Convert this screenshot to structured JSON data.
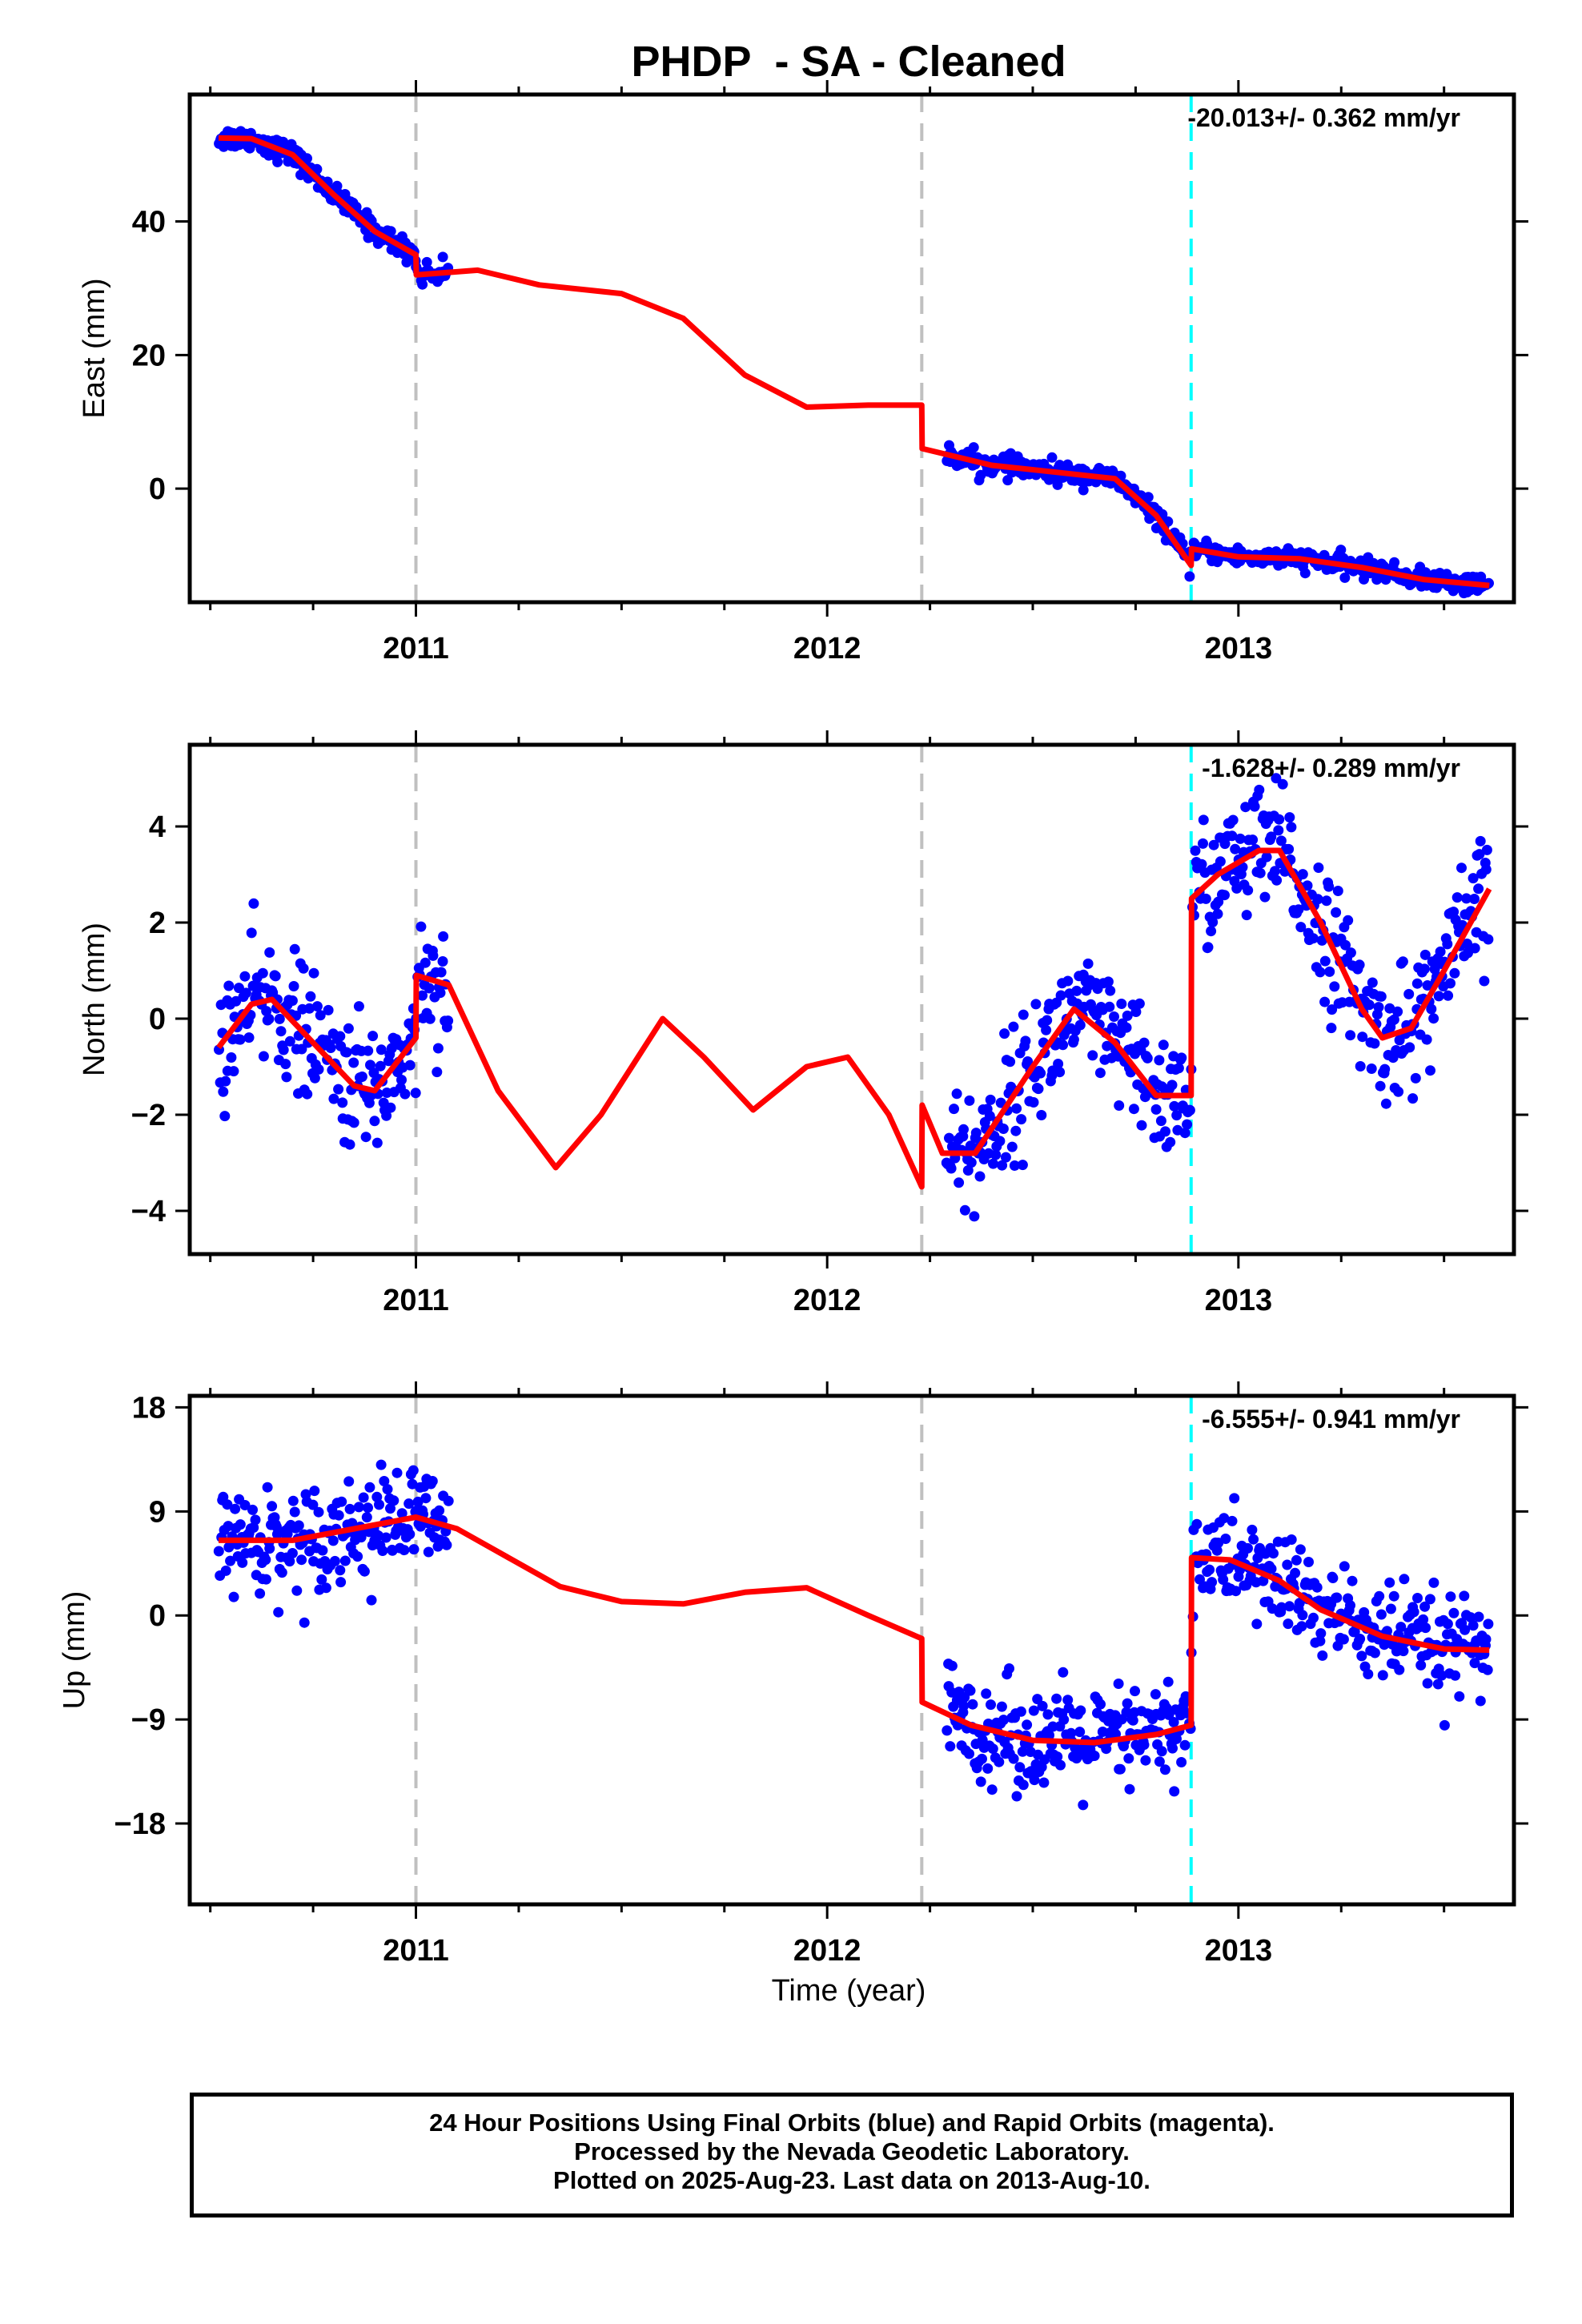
{
  "chart_title": "PHDP  - SA - Cleaned",
  "xlabel": "Time (year)",
  "footer": {
    "line1": "24 Hour Positions Using Final Orbits (blue) and Rapid Orbits (magenta).",
    "line2": "Processed by the Nevada Geodetic Laboratory.",
    "line3": "Plotted on 2025-Aug-23. Last data on 2013-Aug-10."
  },
  "colors": {
    "final_orbit_points": "#0000ff",
    "model_fit": "#ff0000",
    "equipment_change_line": "#c0c0c0",
    "earthquake_line": "#00ffff"
  },
  "chart_data": [
    {
      "type": "scatter",
      "component": "East",
      "ylabel": "East (mm)",
      "rate_label": "-20.013+/- 0.362 mm/yr",
      "xlim": [
        2010.45,
        2013.67
      ],
      "ylim": [
        -17,
        59
      ],
      "yticks": [
        0,
        20,
        40
      ],
      "xticks": [
        2011,
        2012,
        2013
      ],
      "vertical_lines": [
        {
          "x": 2011.0,
          "style": "dashed-gray"
        },
        {
          "x": 2012.23,
          "style": "dashed-gray"
        },
        {
          "x": 2012.885,
          "style": "dashed-cyan"
        }
      ],
      "data_segments": [
        {
          "x_start": 2010.52,
          "x_end": 2011.08,
          "y_start": 56.5,
          "y_end": 31.0,
          "scatter": 1.5
        },
        {
          "x_start": 2012.29,
          "x_end": 2012.885,
          "y_start": 4.5,
          "y_end": -9.0,
          "scatter": 1.4
        },
        {
          "x_start": 2012.885,
          "x_end": 2013.61,
          "y_start": -8.0,
          "y_end": -14.5,
          "scatter": 1.3
        }
      ],
      "model_curve": [
        [
          2010.52,
          52.5
        ],
        [
          2010.6,
          52.4
        ],
        [
          2010.7,
          50.0
        ],
        [
          2010.8,
          44.0
        ],
        [
          2010.9,
          38.5
        ],
        [
          2011.0,
          35.0
        ],
        [
          2011.001,
          32.0
        ],
        [
          2011.15,
          32.7
        ],
        [
          2011.3,
          30.5
        ],
        [
          2011.5,
          29.2
        ],
        [
          2011.65,
          25.5
        ],
        [
          2011.8,
          17.0
        ],
        [
          2011.95,
          12.2
        ],
        [
          2012.1,
          12.5
        ],
        [
          2012.23,
          12.5
        ],
        [
          2012.231,
          6.0
        ],
        [
          2012.4,
          3.5
        ],
        [
          2012.55,
          2.5
        ],
        [
          2012.7,
          1.5
        ],
        [
          2012.8,
          -4.0
        ],
        [
          2012.885,
          -11.5
        ],
        [
          2012.886,
          -9.0
        ],
        [
          2013.0,
          -10.2
        ],
        [
          2013.15,
          -10.5
        ],
        [
          2013.3,
          -11.8
        ],
        [
          2013.45,
          -13.6
        ],
        [
          2013.61,
          -14.5
        ]
      ]
    },
    {
      "type": "scatter",
      "component": "North",
      "ylabel": "North (mm)",
      "rate_label": "-1.628+/- 0.289 mm/yr",
      "xlim": [
        2010.45,
        2013.67
      ],
      "ylim": [
        -4.9,
        5.7
      ],
      "yticks": [
        -4,
        -2,
        0,
        2,
        4
      ],
      "xticks": [
        2011,
        2012,
        2013
      ],
      "vertical_lines": [
        {
          "x": 2011.0,
          "style": "dashed-gray"
        },
        {
          "x": 2012.23,
          "style": "dashed-gray"
        },
        {
          "x": 2012.885,
          "style": "dashed-cyan"
        }
      ],
      "data_segments": [
        {
          "x_start": 2010.52,
          "x_end": 2011.08,
          "y_start": -0.5,
          "y_end": 0.5,
          "scatter": 1.2
        },
        {
          "x_start": 2012.29,
          "x_end": 2012.885,
          "y_start": -2.5,
          "y_end": -1.5,
          "scatter": 1.2
        },
        {
          "x_start": 2012.885,
          "x_end": 2013.61,
          "y_start": 3.0,
          "y_end": 2.5,
          "scatter": 1.2
        }
      ],
      "model_curve": [
        [
          2010.52,
          -0.6
        ],
        [
          2010.6,
          0.3
        ],
        [
          2010.65,
          0.4
        ],
        [
          2010.75,
          -0.5
        ],
        [
          2010.85,
          -1.4
        ],
        [
          2010.9,
          -1.5
        ],
        [
          2011.0,
          -0.4
        ],
        [
          2011.001,
          0.9
        ],
        [
          2011.08,
          0.7
        ],
        [
          2011.2,
          -1.5
        ],
        [
          2011.34,
          -3.1
        ],
        [
          2011.45,
          -2.0
        ],
        [
          2011.6,
          0.0
        ],
        [
          2011.7,
          -0.8
        ],
        [
          2011.82,
          -1.9
        ],
        [
          2011.95,
          -1.0
        ],
        [
          2012.05,
          -0.8
        ],
        [
          2012.15,
          -2.0
        ],
        [
          2012.23,
          -3.5
        ],
        [
          2012.231,
          -1.8
        ],
        [
          2012.28,
          -2.8
        ],
        [
          2012.36,
          -2.8
        ],
        [
          2012.5,
          -1.0
        ],
        [
          2012.6,
          0.2
        ],
        [
          2012.7,
          -0.5
        ],
        [
          2012.8,
          -1.6
        ],
        [
          2012.885,
          -1.6
        ],
        [
          2012.886,
          2.5
        ],
        [
          2012.95,
          3.0
        ],
        [
          2013.05,
          3.5
        ],
        [
          2013.1,
          3.5
        ],
        [
          2013.2,
          2.0
        ],
        [
          2013.3,
          0.2
        ],
        [
          2013.35,
          -0.4
        ],
        [
          2013.42,
          -0.2
        ],
        [
          2013.5,
          1.0
        ],
        [
          2013.61,
          2.7
        ]
      ]
    },
    {
      "type": "scatter",
      "component": "Up",
      "ylabel": "Up (mm)",
      "rate_label": "-6.555+/- 0.941 mm/yr",
      "xlim": [
        2010.45,
        2013.67
      ],
      "ylim": [
        -25,
        19
      ],
      "yticks": [
        -18,
        -9,
        0,
        9,
        18
      ],
      "xticks": [
        2011,
        2012,
        2013
      ],
      "vertical_lines": [
        {
          "x": 2011.0,
          "style": "dashed-gray"
        },
        {
          "x": 2012.23,
          "style": "dashed-gray"
        },
        {
          "x": 2012.885,
          "style": "dashed-cyan"
        }
      ],
      "data_segments": [
        {
          "x_start": 2010.52,
          "x_end": 2011.08,
          "y_start": 6.5,
          "y_end": 8.5,
          "scatter": 4.0
        },
        {
          "x_start": 2012.29,
          "x_end": 2012.885,
          "y_start": -10.0,
          "y_end": -10.0,
          "scatter": 4.0
        },
        {
          "x_start": 2012.885,
          "x_end": 2013.61,
          "y_start": 5.0,
          "y_end": -3.0,
          "scatter": 4.0
        }
      ],
      "model_curve": [
        [
          2010.52,
          6.5
        ],
        [
          2010.7,
          6.5
        ],
        [
          2010.85,
          7.5
        ],
        [
          2011.0,
          8.5
        ],
        [
          2011.1,
          7.5
        ],
        [
          2011.2,
          5.5
        ],
        [
          2011.35,
          2.5
        ],
        [
          2011.5,
          1.2
        ],
        [
          2011.65,
          1.0
        ],
        [
          2011.8,
          2.0
        ],
        [
          2011.95,
          2.4
        ],
        [
          2012.1,
          0.0
        ],
        [
          2012.23,
          -2.0
        ],
        [
          2012.231,
          -7.5
        ],
        [
          2012.35,
          -9.5
        ],
        [
          2012.5,
          -10.8
        ],
        [
          2012.65,
          -11.0
        ],
        [
          2012.8,
          -10.3
        ],
        [
          2012.885,
          -9.5
        ],
        [
          2012.886,
          5.0
        ],
        [
          2012.98,
          4.8
        ],
        [
          2013.1,
          3.0
        ],
        [
          2013.2,
          0.5
        ],
        [
          2013.35,
          -1.8
        ],
        [
          2013.5,
          -2.9
        ],
        [
          2013.61,
          -3.0
        ]
      ]
    }
  ]
}
